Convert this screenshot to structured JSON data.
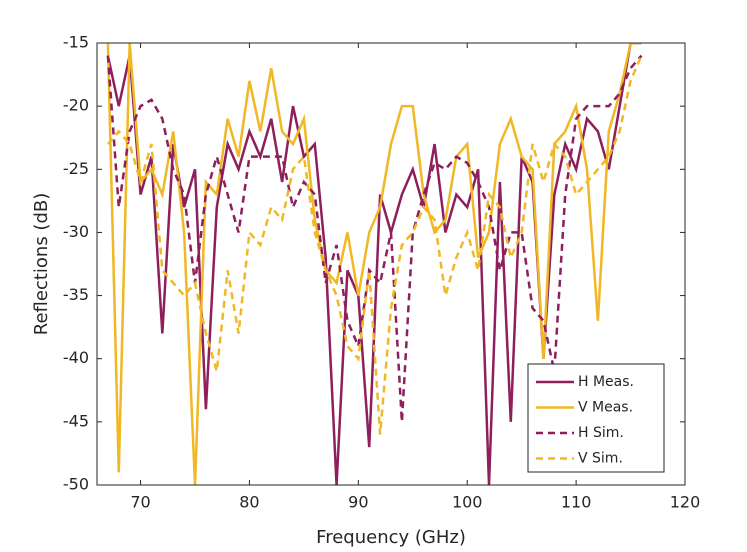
{
  "chart_data": {
    "type": "line",
    "x_label": "Frequency (GHz)",
    "y_label": "Reflections (dB)",
    "x": [
      67,
      68,
      69,
      70,
      71,
      72,
      73,
      74,
      75,
      76,
      77,
      78,
      79,
      80,
      81,
      82,
      83,
      84,
      85,
      86,
      87,
      88,
      89,
      90,
      91,
      92,
      93,
      94,
      95,
      96,
      97,
      98,
      99,
      100,
      101,
      102,
      103,
      104,
      105,
      106,
      107,
      108,
      109,
      110,
      111,
      112,
      113,
      114,
      115,
      116
    ],
    "xlim": [
      66,
      120
    ],
    "xticks": [
      70,
      80,
      90,
      100,
      110,
      120
    ],
    "ylim": [
      -50,
      -15
    ],
    "yticks": [
      -50,
      -45,
      -40,
      -35,
      -30,
      -25,
      -20,
      -15
    ],
    "grid": false,
    "legend": "southeast",
    "series": [
      {
        "name": "H Meas.",
        "color": "#8e1f5c",
        "style": "solid",
        "values": [
          -16,
          -20,
          -16,
          -27,
          -24,
          -38,
          -23,
          -28,
          -25,
          -44,
          -28,
          -23,
          -25,
          -22,
          -24,
          -21,
          -26,
          -20,
          -24,
          -23,
          -32,
          -50,
          -33,
          -35,
          -47,
          -27,
          -30,
          -27,
          -25,
          -28,
          -23,
          -30,
          -27,
          -28,
          -25,
          -50,
          -26,
          -45,
          -24,
          -26,
          -40,
          -27,
          -23,
          -25,
          -21,
          -22,
          -25,
          -20,
          -15,
          -15
        ]
      },
      {
        "name": "V Meas.",
        "color": "#f0b825",
        "style": "solid",
        "values": [
          -15,
          -49,
          -15,
          -26,
          -25,
          -27,
          -22,
          -30,
          -50,
          -26,
          -27,
          -21,
          -24,
          -18,
          -22,
          -17,
          -22,
          -23,
          -21,
          -29,
          -33,
          -34,
          -30,
          -35,
          -30,
          -28,
          -23,
          -20,
          -20,
          -27,
          -30,
          -29,
          -24,
          -23,
          -32,
          -30,
          -23,
          -21,
          -24,
          -25,
          -40,
          -23,
          -22,
          -20,
          -25,
          -37,
          -22,
          -19,
          -15,
          -15
        ]
      },
      {
        "name": "H Sim.",
        "color": "#8e1f5c",
        "style": "dashed",
        "values": [
          -16,
          -28,
          -22,
          -20,
          -19.5,
          -21,
          -25,
          -27,
          -34,
          -27,
          -24,
          -27,
          -30,
          -24,
          -24,
          -24,
          -24,
          -28,
          -26,
          -27,
          -34,
          -31,
          -37,
          -39,
          -33,
          -34,
          -30,
          -45,
          -30,
          -27,
          -24.5,
          -25,
          -24,
          -24.5,
          -26,
          -28,
          -33,
          -30,
          -30,
          -36,
          -37,
          -41,
          -27,
          -21,
          -20,
          -20,
          -20,
          -19,
          -17,
          -16
        ]
      },
      {
        "name": "V Sim.",
        "color": "#f0b825",
        "style": "dashed",
        "values": [
          -23,
          -22,
          -23,
          -26,
          -23,
          -33,
          -34,
          -35,
          -34,
          -38,
          -41,
          -33,
          -38,
          -30,
          -31,
          -28,
          -29,
          -25,
          -24,
          -30,
          -33,
          -35,
          -39,
          -40,
          -33,
          -46,
          -36,
          -31,
          -30,
          -28,
          -29,
          -35,
          -32,
          -30,
          -33,
          -27,
          -28,
          -32,
          -30,
          -23,
          -26,
          -23,
          -24,
          -27,
          -26,
          -25,
          -24,
          -22,
          -18,
          -16
        ]
      }
    ]
  }
}
